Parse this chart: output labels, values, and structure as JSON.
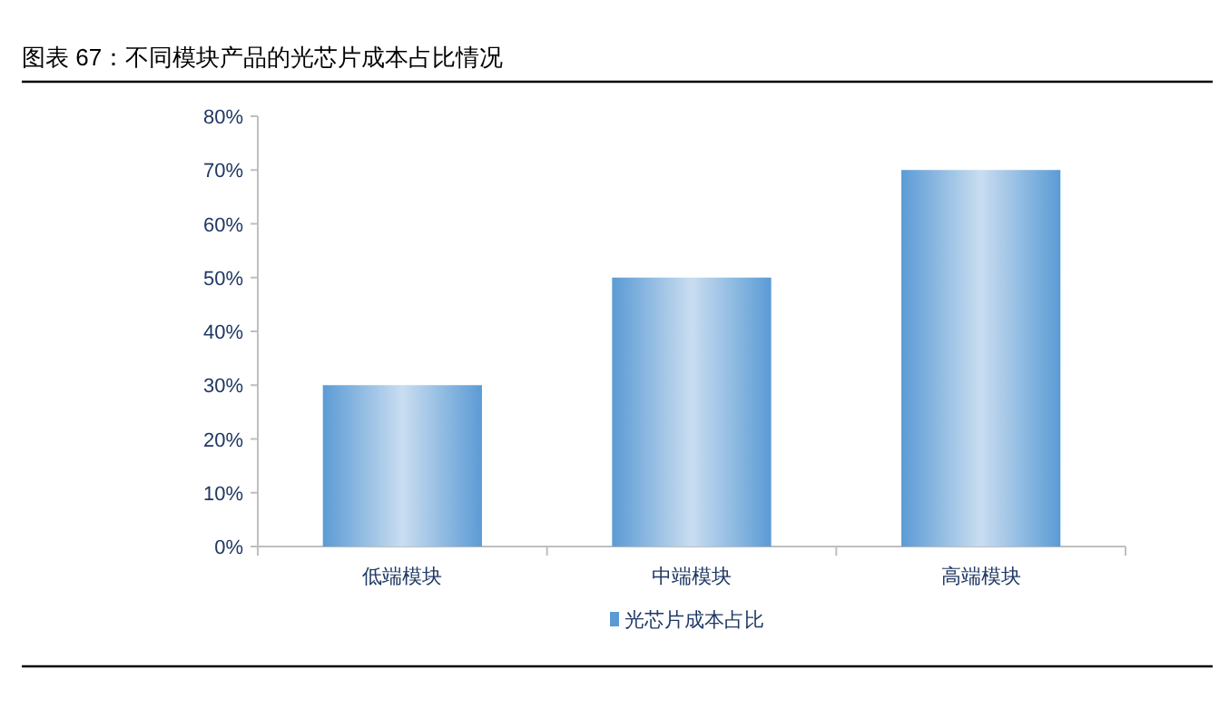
{
  "chart_data": {
    "type": "bar",
    "title": "图表 67：不同模块产品的光芯片成本占比情况",
    "categories": [
      "低端模块",
      "中端模块",
      "高端模块"
    ],
    "series": [
      {
        "name": "光芯片成本占比",
        "color": "#5b9bd5",
        "values": [
          30,
          50,
          70
        ]
      }
    ],
    "ylim": [
      0,
      80
    ],
    "yticks": [
      {
        "value": 0,
        "label": "0%"
      },
      {
        "value": 10,
        "label": "10%"
      },
      {
        "value": 20,
        "label": "20%"
      },
      {
        "value": 30,
        "label": "30%"
      },
      {
        "value": 40,
        "label": "40%"
      },
      {
        "value": 50,
        "label": "50%"
      },
      {
        "value": 60,
        "label": "60%"
      },
      {
        "value": 70,
        "label": "70%"
      },
      {
        "value": 80,
        "label": "80%"
      }
    ],
    "grid": false,
    "legend": "bottom"
  }
}
